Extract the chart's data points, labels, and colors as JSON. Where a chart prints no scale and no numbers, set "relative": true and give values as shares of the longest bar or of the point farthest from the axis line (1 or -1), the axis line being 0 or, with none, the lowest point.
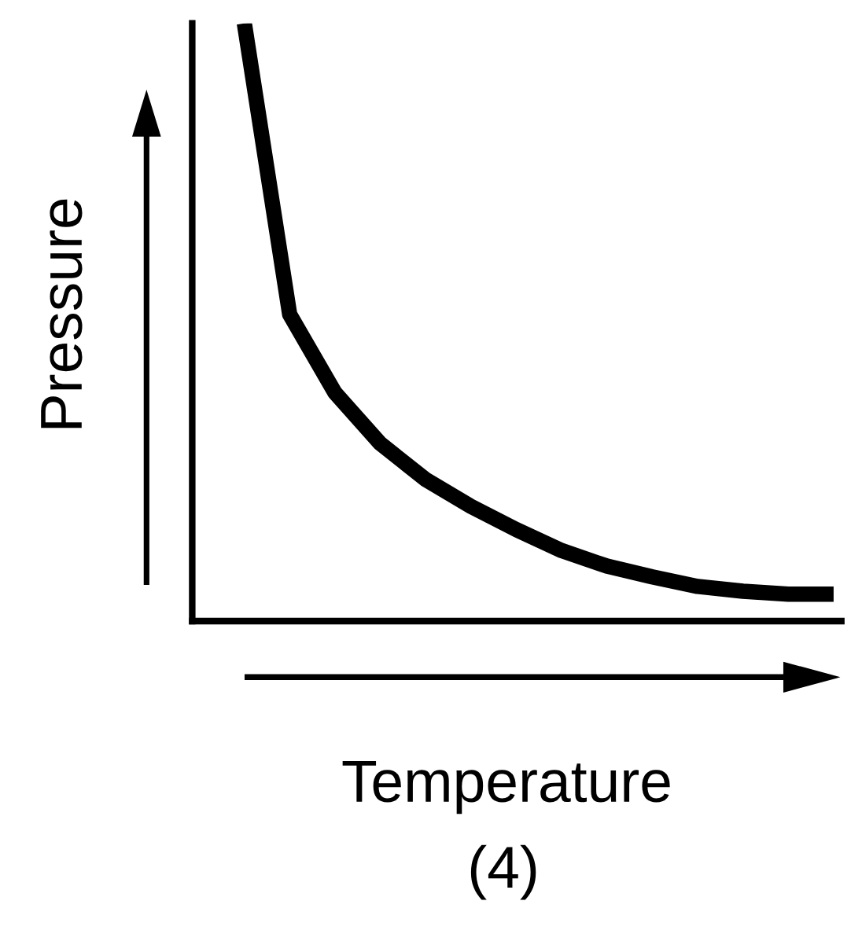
{
  "chart_data": {
    "type": "line",
    "relative": true,
    "xlabel": "Temperature",
    "ylabel": "Pressure",
    "annotations": [
      "(4)"
    ],
    "categories": [
      null,
      null,
      null,
      null,
      null,
      null,
      null,
      null,
      null,
      null,
      null,
      null,
      null,
      null
    ],
    "series": [
      {
        "color": "#000000",
        "values": [
          1.0,
          0.513,
          0.382,
          0.297,
          0.237,
          0.192,
          0.153,
          0.118,
          0.092,
          0.074,
          0.058,
          0.05,
          0.045,
          0.045
        ]
      }
    ],
    "legend": false,
    "marker": "none",
    "line_style": "solid"
  }
}
